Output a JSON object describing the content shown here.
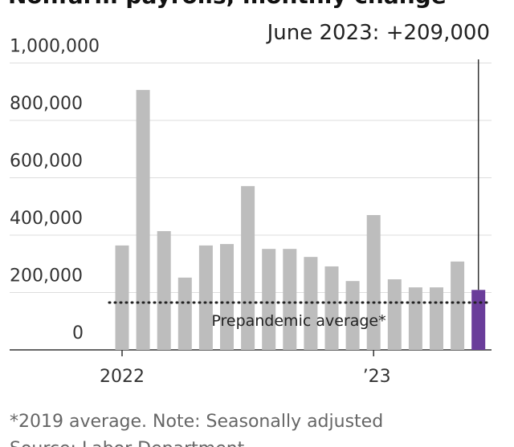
{
  "chart_data": {
    "type": "bar",
    "title": "Nonfarm payrolls, monthly change",
    "annotation": "June 2023: +209,000",
    "categories": [
      "2022",
      null,
      null,
      null,
      null,
      null,
      null,
      null,
      null,
      null,
      null,
      null,
      "’23",
      null,
      null,
      null,
      null,
      null
    ],
    "values": [
      364000,
      906000,
      414000,
      252000,
      364000,
      369000,
      571000,
      352000,
      352000,
      324000,
      291000,
      240000,
      470000,
      246000,
      218000,
      218000,
      308000,
      209000
    ],
    "colors": [
      "#bdbdbd",
      "#bdbdbd",
      "#bdbdbd",
      "#bdbdbd",
      "#bdbdbd",
      "#bdbdbd",
      "#bdbdbd",
      "#bdbdbd",
      "#bdbdbd",
      "#bdbdbd",
      "#bdbdbd",
      "#bdbdbd",
      "#bdbdbd",
      "#bdbdbd",
      "#bdbdbd",
      "#bdbdbd",
      "#bdbdbd",
      "#6a3d9a"
    ],
    "reference_line": {
      "value": 165000,
      "label": "Prepandemic average*"
    },
    "ylim": [
      0,
      1000000
    ],
    "yticks": [
      0,
      {
        "value": 200000,
        "label": "200,000"
      },
      {
        "value": 400000,
        "label": "400,000"
      },
      {
        "value": 600000,
        "label": "600,000"
      },
      {
        "value": 800000,
        "label": "800,000"
      },
      {
        "value": 1000000,
        "label": "1,000,000"
      }
    ],
    "grid": true,
    "footnote": "*2019 average. Note: Seasonally adjusted",
    "source": "Source: Labor Department"
  }
}
